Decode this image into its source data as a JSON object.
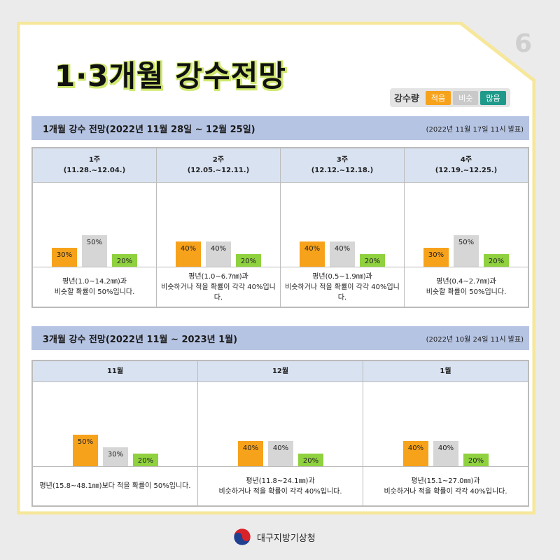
{
  "page_number": "6",
  "title": "1·3개월 강수전망",
  "legend": {
    "label": "강수량",
    "items": [
      {
        "label": "적음",
        "color": "#f7a21b"
      },
      {
        "label": "비슷",
        "color": "#c9c9c9"
      },
      {
        "label": "많음",
        "color": "#1f9a8a"
      }
    ]
  },
  "colors": {
    "low": "#f7a21b",
    "similar": "#d6d6d6",
    "high": "#8fd13f",
    "frame": "#f6e79a"
  },
  "one_month": {
    "title": "1개월 강수 전망(2022년 11월 28일 ~ 12월 25일)",
    "issued": "(2022년 11월 17일 11시 발표)"
  },
  "three_month": {
    "title": "3개월 강수 전망(2022년 11월 ~ 2023년 1월)",
    "issued": "(2022년 10월 24일 11시 발표)"
  },
  "chart_data": [
    {
      "type": "bar",
      "title": "1개월 강수 전망",
      "categories": [
        "1주",
        "2주",
        "3주",
        "4주"
      ],
      "periods": [
        "(11.28.~12.04.)",
        "(12.05.~12.11.)",
        "(12.12.~12.18.)",
        "(12.19.~12.25.)"
      ],
      "series": [
        {
          "name": "적음",
          "values": [
            30,
            40,
            40,
            30
          ]
        },
        {
          "name": "비슷",
          "values": [
            50,
            40,
            40,
            50
          ]
        },
        {
          "name": "많음",
          "values": [
            20,
            20,
            20,
            20
          ]
        }
      ],
      "descriptions": [
        [
          "평년(1.0~14.2㎜)과",
          "비슷할 확률이 50%입니다."
        ],
        [
          "평년(1.0~6.7㎜)과",
          "비슷하거나 적을 확률이 각각 40%입니다."
        ],
        [
          "평년(0.5~1.9㎜)과",
          "비슷하거나 적을 확률이 각각 40%입니다."
        ],
        [
          "평년(0.4~2.7㎜)과",
          "비슷할 확률이 50%입니다."
        ]
      ]
    },
    {
      "type": "bar",
      "title": "3개월 강수 전망",
      "categories": [
        "11월",
        "12월",
        "1월"
      ],
      "series": [
        {
          "name": "적음",
          "values": [
            50,
            40,
            40
          ]
        },
        {
          "name": "비슷",
          "values": [
            30,
            40,
            40
          ]
        },
        {
          "name": "많음",
          "values": [
            20,
            20,
            20
          ]
        }
      ],
      "descriptions": [
        [
          "평년(15.8~48.1㎜)보다 적을 확률이 50%입니다."
        ],
        [
          "평년(11.8~24.1㎜)과",
          "비슷하거나 적을 확률이 각각 40%입니다."
        ],
        [
          "평년(15.1~27.0㎜)과",
          "비슷하거나 적을 확률이 각각 40%입니다."
        ]
      ]
    }
  ],
  "footer": {
    "org": "대구지방기상청"
  }
}
